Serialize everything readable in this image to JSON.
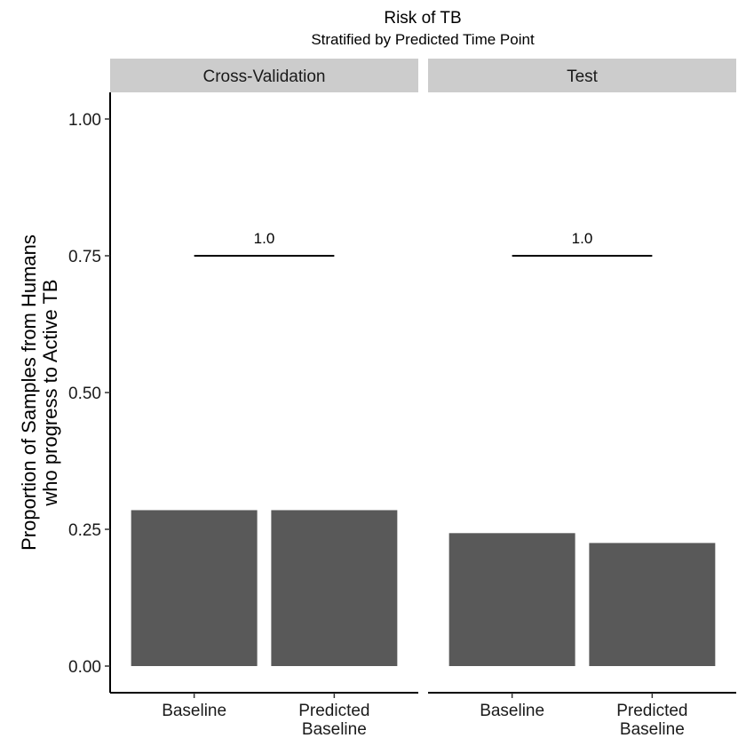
{
  "chart_data": {
    "type": "bar",
    "title": "Risk of TB",
    "subtitle": "Stratified by Predicted Time Point",
    "ylabel": [
      "Proportion of Samples from Humans",
      "who progress to Active TB"
    ],
    "xlabel": "",
    "ylim": [
      0,
      1
    ],
    "yticks": [
      "0.00",
      "0.25",
      "0.50",
      "0.75",
      "1.00"
    ],
    "bar_color": "#595959",
    "strip_color": "#cccccc",
    "grid": false,
    "legend": "none",
    "panels": [
      {
        "name": "Cross-Validation",
        "categories": [
          [
            "Baseline"
          ],
          [
            "Predicted",
            "Baseline"
          ]
        ],
        "values": [
          0.285,
          0.285
        ],
        "comparison": {
          "label": "1.0",
          "y": 0.75
        }
      },
      {
        "name": "Test",
        "categories": [
          [
            "Baseline"
          ],
          [
            "Predicted",
            "Baseline"
          ]
        ],
        "values": [
          0.243,
          0.225
        ],
        "comparison": {
          "label": "1.0",
          "y": 0.75
        }
      }
    ]
  }
}
